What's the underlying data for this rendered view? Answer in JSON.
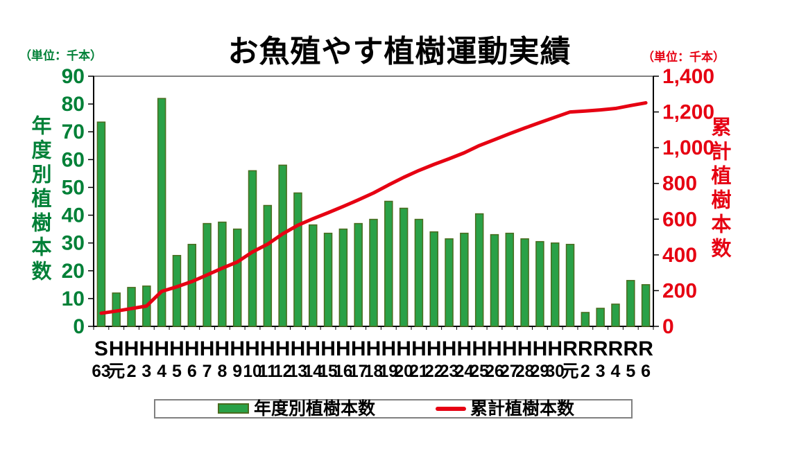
{
  "title": "お魚殖やす植樹運動実績",
  "left_axis": {
    "unit": "（単位：千本）",
    "title": "年度別植樹本数",
    "min": 0,
    "max": 90,
    "step": 10,
    "ticks": [
      0,
      10,
      20,
      30,
      40,
      50,
      60,
      70,
      80,
      90
    ],
    "color": "#008037"
  },
  "right_axis": {
    "unit": "（単位：千本）",
    "title": "累計植樹本数",
    "min": 0,
    "max": 1400,
    "step": 200,
    "ticks": [
      0,
      200,
      400,
      600,
      800,
      1000,
      1200,
      1400
    ],
    "color": "#e60012"
  },
  "legend": {
    "bar_label": "年度別植樹本数",
    "line_label": "累計植樹本数"
  },
  "colors": {
    "bar_fill": "#2aa147",
    "bar_border": "#4a6b1e",
    "line": "#e60012",
    "axis_black": "#000000",
    "border_gray": "#808080"
  },
  "chart_data": {
    "type": "bar+line",
    "title": "お魚殖やす植樹運動実績",
    "categories": [
      {
        "era": "S",
        "year": "63"
      },
      {
        "era": "H",
        "year": "元"
      },
      {
        "era": "H",
        "year": "2"
      },
      {
        "era": "H",
        "year": "3"
      },
      {
        "era": "H",
        "year": "4"
      },
      {
        "era": "H",
        "year": "5"
      },
      {
        "era": "H",
        "year": "6"
      },
      {
        "era": "H",
        "year": "7"
      },
      {
        "era": "H",
        "year": "8"
      },
      {
        "era": "H",
        "year": "9"
      },
      {
        "era": "H",
        "year": "10"
      },
      {
        "era": "H",
        "year": "11"
      },
      {
        "era": "H",
        "year": "12"
      },
      {
        "era": "H",
        "year": "13"
      },
      {
        "era": "H",
        "year": "14"
      },
      {
        "era": "H",
        "year": "15"
      },
      {
        "era": "H",
        "year": "16"
      },
      {
        "era": "H",
        "year": "17"
      },
      {
        "era": "H",
        "year": "18"
      },
      {
        "era": "H",
        "year": "19"
      },
      {
        "era": "H",
        "year": "20"
      },
      {
        "era": "H",
        "year": "21"
      },
      {
        "era": "H",
        "year": "22"
      },
      {
        "era": "H",
        "year": "23"
      },
      {
        "era": "H",
        "year": "24"
      },
      {
        "era": "H",
        "year": "25"
      },
      {
        "era": "H",
        "year": "26"
      },
      {
        "era": "H",
        "year": "27"
      },
      {
        "era": "H",
        "year": "28"
      },
      {
        "era": "H",
        "year": "29"
      },
      {
        "era": "H",
        "year": "30"
      },
      {
        "era": "R",
        "year": "元"
      },
      {
        "era": "R",
        "year": "2"
      },
      {
        "era": "R",
        "year": "3"
      },
      {
        "era": "R",
        "year": "4"
      },
      {
        "era": "R",
        "year": "5"
      },
      {
        "era": "R",
        "year": "6"
      }
    ],
    "series": [
      {
        "name": "年度別植樹本数",
        "type": "bar",
        "axis": "left",
        "values": [
          73.5,
          12,
          14,
          14.5,
          82,
          25.5,
          29.5,
          37,
          37.5,
          35,
          56,
          43.5,
          58,
          48,
          36.5,
          33.5,
          35,
          37,
          38.5,
          45,
          42.5,
          38.5,
          34,
          31.5,
          33.5,
          40.5,
          33,
          33.5,
          31.5,
          30.5,
          30,
          29.5,
          5,
          6.5,
          8,
          16.5,
          15
        ]
      },
      {
        "name": "累計植樹本数",
        "type": "line",
        "axis": "right",
        "values": [
          73.5,
          85.5,
          99.5,
          114,
          196,
          221.5,
          251,
          288,
          325.5,
          360.5,
          416.5,
          460,
          518,
          566,
          602.5,
          636,
          671,
          708,
          746.5,
          791.5,
          834,
          872.5,
          906.5,
          938,
          971.5,
          1012,
          1045,
          1078.5,
          1110,
          1140.5,
          1170.5,
          1200,
          1205,
          1211.5,
          1219.5,
          1236,
          1251
        ]
      }
    ],
    "left_ylim": [
      0,
      90
    ],
    "right_ylim": [
      0,
      1400
    ],
    "legend_position": "bottom",
    "grid": false
  }
}
